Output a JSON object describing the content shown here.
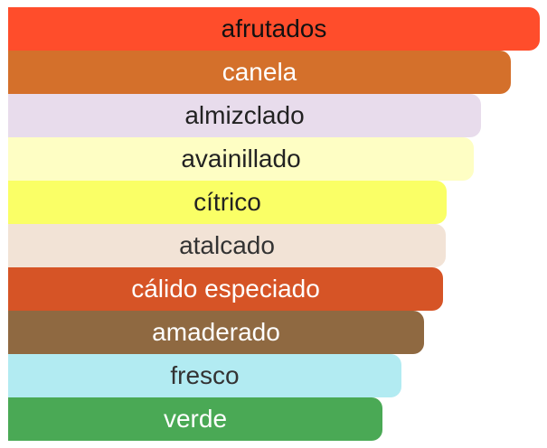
{
  "chart_data": {
    "type": "bar",
    "orientation": "horizontal",
    "categories": [
      "afrutados",
      "canela",
      "almizclado",
      "avainillado",
      "cítrico",
      "atalcado",
      "cálido especiado",
      "amaderado",
      "fresco",
      "verde"
    ],
    "values": [
      100,
      94.5,
      89.0,
      87.6,
      82.5,
      82.3,
      81.8,
      78.3,
      73.9,
      70.4
    ],
    "colors": [
      "#FF4D2B",
      "#D4702B",
      "#E8DCEC",
      "#FEFEC4",
      "#FAFF66",
      "#F2E3D6",
      "#D65426",
      "#8F6941",
      "#B2EBF2",
      "#4AA955"
    ],
    "label_colors": [
      "#111111",
      "#ffffff",
      "#222222",
      "#222222",
      "#222222",
      "#333333",
      "#ffffff",
      "#ffffff",
      "#333333",
      "#ffffff"
    ],
    "xlim": [
      0,
      100
    ],
    "grid": false,
    "legend": "none"
  }
}
